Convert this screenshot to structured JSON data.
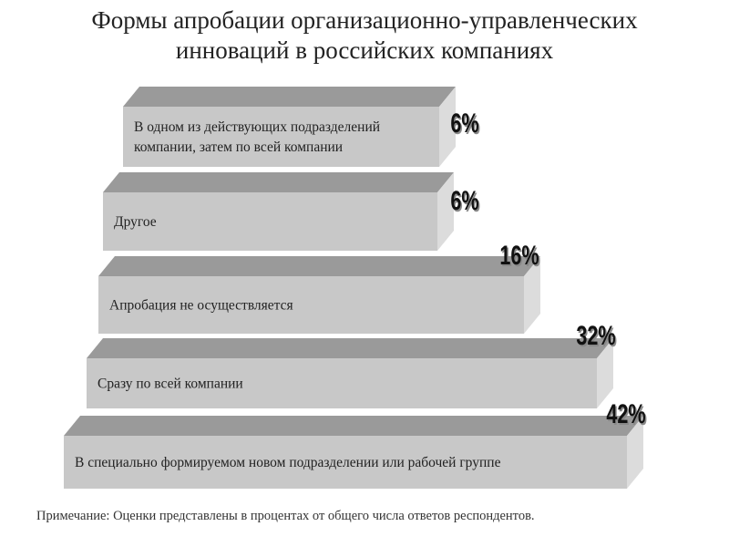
{
  "chart_data": {
    "type": "bar",
    "orientation": "horizontal-3d",
    "title": "Формы апробации организационно-управленческих инноваций в российских компаниях",
    "title_lines": [
      "Формы апробации организационно-управленческих",
      "инноваций в российских компаниях"
    ],
    "categories": [
      [
        "В одном из действующих подразделений",
        "компании, затем по всей компании"
      ],
      [
        "Другое"
      ],
      [
        "Апробация не осуществляется"
      ],
      [
        "Сразу по всей компании"
      ],
      [
        "В специально формируемом новом подразделении или рабочей группе"
      ]
    ],
    "values": [
      6,
      6,
      16,
      32,
      42
    ],
    "value_labels": [
      "6%",
      "6%",
      "16%",
      "32%",
      "42%"
    ],
    "unit": "%",
    "note": "Примечание: Оценки представлены в процентах от общего числа ответов респондентов.",
    "colors": {
      "front": "#c8c8c8",
      "top": "#9a9a9a",
      "side": "#dcdcdc"
    }
  }
}
